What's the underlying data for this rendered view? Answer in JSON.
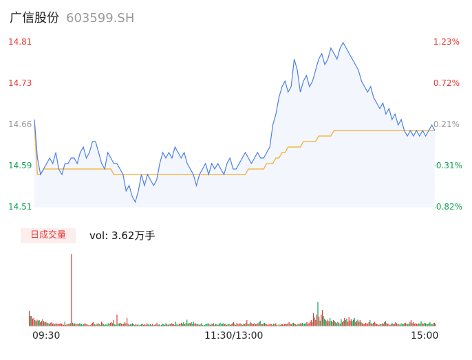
{
  "header": {
    "name": "广信股份",
    "code": "603599.SH"
  },
  "volume": {
    "badge": "日成交量",
    "text": "vol: 3.62万手"
  },
  "colors": {
    "up": "#e53935",
    "down": "#0aa34f",
    "neutral": "#999999",
    "price_line": "#4a7fe8",
    "avg_line": "#f2b84b",
    "fill": "#f3f6fd"
  },
  "chart_data": {
    "type": "line",
    "price_ticks": [
      "14.81",
      "14.73",
      "14.66",
      "14.59",
      "14.51"
    ],
    "pct_ticks": [
      "1.23%",
      "0.72%",
      "0.21%",
      "-0.31%",
      "-0.82%"
    ],
    "time_labels": [
      "09:30",
      "11:30/13:00",
      "15:00"
    ],
    "ylim": [
      14.51,
      14.81
    ],
    "series": [
      {
        "values": [
          14.67,
          14.6,
          14.57,
          14.58,
          14.59,
          14.6,
          14.59,
          14.61,
          14.58,
          14.57,
          14.59,
          14.59,
          14.6,
          14.6,
          14.59,
          14.61,
          14.62,
          14.6,
          14.61,
          14.63,
          14.63,
          14.61,
          14.59,
          14.58,
          14.61,
          14.6,
          14.59,
          14.59,
          14.58,
          14.57,
          14.54,
          14.55,
          14.53,
          14.52,
          14.54,
          14.57,
          14.55,
          14.57,
          14.56,
          14.55,
          14.56,
          14.59,
          14.61,
          14.6,
          14.61,
          14.6,
          14.62,
          14.61,
          14.6,
          14.61,
          14.59,
          14.58,
          14.57,
          14.55,
          14.57,
          14.58,
          14.59,
          14.57,
          14.59,
          14.58,
          14.59,
          14.58,
          14.57,
          14.59,
          14.6,
          14.58,
          14.58,
          14.59,
          14.6,
          14.61,
          14.6,
          14.59,
          14.6,
          14.61,
          14.6,
          14.6,
          14.61,
          14.62,
          14.66,
          14.68,
          14.71,
          14.73,
          14.74,
          14.72,
          14.73,
          14.78,
          14.76,
          14.72,
          14.74,
          14.75,
          14.73,
          14.74,
          14.76,
          14.78,
          14.79,
          14.77,
          14.78,
          14.8,
          14.79,
          14.78,
          14.8,
          14.81,
          14.8,
          14.79,
          14.78,
          14.77,
          14.76,
          14.74,
          14.73,
          14.72,
          14.73,
          14.71,
          14.7,
          14.69,
          14.7,
          14.68,
          14.69,
          14.67,
          14.68,
          14.66,
          14.67,
          14.65,
          14.64,
          14.65,
          14.64,
          14.65,
          14.64,
          14.65,
          14.64,
          14.65,
          14.66,
          14.65
        ]
      },
      {
        "values": [
          14.66,
          14.57,
          14.57,
          14.58,
          14.58,
          14.58,
          14.58,
          14.58,
          14.58,
          14.58,
          14.58,
          14.58,
          14.58,
          14.58,
          14.58,
          14.58,
          14.58,
          14.58,
          14.58,
          14.58,
          14.58,
          14.58,
          14.58,
          14.58,
          14.58,
          14.58,
          14.57,
          14.57,
          14.57,
          14.57,
          14.57,
          14.57,
          14.57,
          14.57,
          14.57,
          14.57,
          14.57,
          14.57,
          14.57,
          14.57,
          14.57,
          14.57,
          14.57,
          14.57,
          14.57,
          14.57,
          14.57,
          14.57,
          14.57,
          14.57,
          14.57,
          14.57,
          14.57,
          14.57,
          14.57,
          14.57,
          14.57,
          14.57,
          14.57,
          14.57,
          14.57,
          14.57,
          14.57,
          14.57,
          14.57,
          14.57,
          14.57,
          14.57,
          14.57,
          14.57,
          14.58,
          14.58,
          14.58,
          14.58,
          14.58,
          14.58,
          14.59,
          14.59,
          14.59,
          14.6,
          14.6,
          14.61,
          14.61,
          14.62,
          14.62,
          14.62,
          14.62,
          14.62,
          14.63,
          14.63,
          14.63,
          14.63,
          14.63,
          14.64,
          14.64,
          14.64,
          14.64,
          14.64,
          14.65,
          14.65,
          14.65,
          14.65,
          14.65,
          14.65,
          14.65,
          14.65,
          14.65,
          14.65,
          14.65,
          14.65,
          14.65,
          14.65,
          14.65,
          14.65,
          14.65,
          14.65,
          14.65,
          14.65,
          14.65,
          14.65,
          14.65,
          14.65,
          14.65,
          14.65,
          14.65,
          14.65,
          14.65,
          14.65,
          14.65,
          14.65,
          14.65,
          14.65
        ]
      }
    ],
    "volume": {
      "values": [
        3,
        2,
        2,
        1.5,
        1.6,
        1.2,
        1,
        1.3,
        1.1,
        1.2,
        0.8,
        1.1,
        1.4,
        1,
        0.8,
        0.9,
        0.7,
        0.6,
        0.5,
        0.7,
        0.8,
        0.5,
        0.6,
        0.4,
        0.6,
        0.5,
        0.4,
        0.5,
        0.6,
        0.5,
        0.4,
        0.3,
        0.9,
        0.3,
        0.4,
        0.5,
        0.4,
        0.6,
        14,
        0.7,
        0.5,
        0.6,
        0.4,
        0.5,
        0.4,
        0.6,
        0.5,
        0.4,
        0.3,
        0.4,
        0.6,
        0.5,
        0.4,
        0.3,
        0.2,
        0.3,
        0.5,
        0.7,
        0.8,
        0.4,
        0.3,
        0.5,
        0.6,
        0.4,
        0.3,
        0.9,
        0.6,
        0.4,
        0.3,
        0.4,
        0.3,
        0.6,
        0.5,
        0.7,
        0.8,
        0.6,
        1.2,
        0.4,
        0.3,
        2.3,
        0.5,
        0.6,
        0.7,
        0.5,
        0.4,
        0.5,
        0.8,
        0.6,
        1.6,
        0.5,
        0.3,
        0.4,
        0.5,
        0.6,
        0.4,
        0.3,
        0.5,
        0.3,
        0.4,
        0.2,
        0.3,
        0.4,
        0.5,
        0.3,
        0.4,
        0.3,
        0.6,
        0.4,
        0.3,
        0.4,
        0.3,
        0.5,
        0.2,
        0.3,
        0.4,
        0.7,
        0.3,
        0.4,
        0.2,
        0.3,
        0.5,
        0.4,
        0.3,
        0.6,
        0.4,
        0.3,
        0.5,
        0.4,
        0.6,
        0.5,
        0.4,
        0.3,
        0.9,
        0.4,
        0.3,
        0.5,
        0.4,
        0.7,
        0.5,
        0.8,
        0.4,
        0.6,
        1.3,
        0.5,
        0.7,
        0.6,
        0.8,
        0.4,
        0.9,
        0.5,
        0.6,
        0.4,
        0.5,
        0.3,
        0.4,
        0.6,
        0.3,
        0.2,
        0.3,
        0.4,
        0.5,
        0.6,
        0.4,
        0.3,
        0.5,
        0.4,
        0.6,
        0.3,
        0.5,
        0.4,
        0.3,
        0.5,
        0.7,
        0.4,
        0.5,
        0.6,
        0.4,
        0.5,
        0.3,
        0.4,
        0.5,
        0.3,
        0.4,
        0.6,
        0.8,
        0.5,
        0.3,
        0.7,
        0.4,
        0.5,
        0.6,
        0.4,
        0.3,
        0.5,
        0.4,
        0.6,
        1.2,
        0.4,
        0.5,
        0.9,
        0.6,
        0.5,
        0.4,
        0.6,
        0.4,
        0.5,
        0.6,
        0.8,
        1.1,
        0.5,
        0.4,
        0.6,
        0.7,
        0.5,
        0.4,
        0.3,
        0.4,
        0.5,
        0.4,
        0.3,
        0.5,
        0.4,
        0.6,
        0.3,
        0.2,
        0.4,
        0.3,
        0.5,
        0.4,
        0.3,
        0.4,
        0.5,
        0.4,
        0.6,
        0.8,
        0.5,
        0.4,
        0.6,
        0.7,
        0.5,
        0.4,
        0.3,
        0.5,
        0.4,
        0.6,
        0.5,
        0.7,
        0.4,
        0.5,
        0.6,
        0.8,
        0.5,
        0.6,
        0.9,
        1.2,
        0.8,
        2.6,
        1.7,
        1.2,
        2.3,
        4.7,
        1.9,
        1.1,
        2.3,
        3.2,
        2.0,
        1.5,
        1.2,
        1.0,
        1.3,
        1.0,
        1.6,
        1.1,
        0.8,
        1.2,
        1.0,
        0.8,
        0.6,
        0.9,
        0.7,
        0.5,
        1.4,
        0.8,
        1.1,
        1.6,
        1.2,
        1.5,
        0.9,
        1.8,
        1.1,
        1.4,
        1.0,
        1.3,
        1.6,
        0.8,
        1.1,
        1.3,
        0.9,
        1.2,
        0.8,
        0.6,
        0.5,
        0.4,
        0.7,
        0.6,
        0.5,
        0.8,
        1.2,
        0.6,
        0.5,
        0.7,
        0.9,
        0.6,
        0.5,
        0.4,
        0.3,
        0.5,
        0.4,
        0.6,
        0.5,
        0.8,
        1.0,
        0.6,
        0.5,
        0.4,
        0.3,
        0.5,
        0.6,
        0.4,
        0.5,
        0.8,
        0.6,
        0.4,
        0.5,
        0.3,
        0.6,
        0.5,
        0.4,
        0.6,
        0.7,
        0.5,
        0.4,
        0.5,
        0.9,
        1.2,
        0.6,
        0.8,
        0.5,
        0.6,
        0.5,
        0.4,
        0.6,
        0.5,
        1.0,
        0.6,
        0.5,
        0.7,
        0.6,
        0.5,
        0.4,
        0.6,
        0.8,
        0.5,
        0.4,
        0.6,
        0.7,
        0.5
      ]
    }
  }
}
